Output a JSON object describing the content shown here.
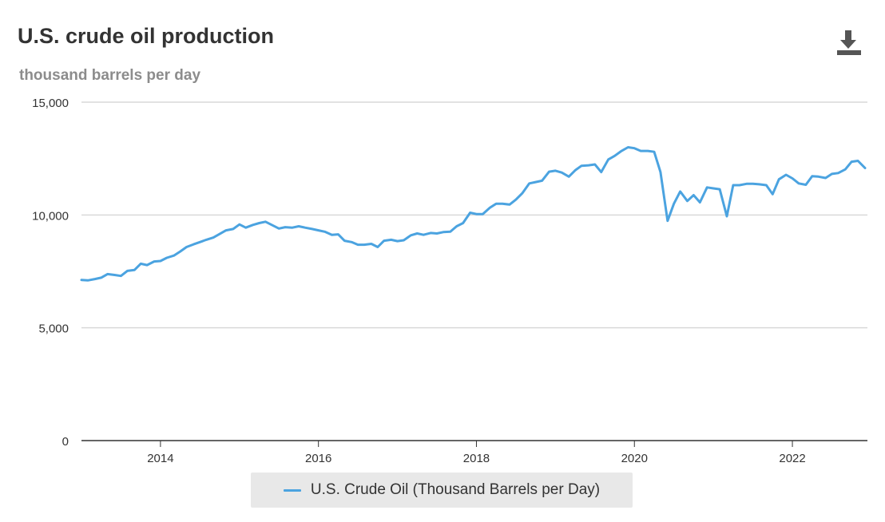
{
  "header": {
    "title": "U.S. crude oil production",
    "subtitle": "thousand barrels per day",
    "download_icon": "download-icon"
  },
  "legend": {
    "label": "U.S. Crude Oil (Thousand Barrels per Day)"
  },
  "colors": {
    "series": "#4ba3e0",
    "grid": "#d9d9d9",
    "axis": "#333333"
  },
  "chart_data": {
    "type": "line",
    "ylabel": "thousand barrels per day",
    "ylim": [
      0,
      15000
    ],
    "xlim": [
      2013.0,
      2022.95
    ],
    "yticks": [
      0,
      5000,
      10000,
      15000
    ],
    "ytick_labels": [
      "0",
      "5,000",
      "10,000",
      "15,000"
    ],
    "xticks": [
      2014,
      2016,
      2018,
      2020,
      2022
    ],
    "xtick_labels": [
      "2014",
      "2016",
      "2018",
      "2020",
      "2022"
    ],
    "grid": true,
    "legend_position": "bottom",
    "series": [
      {
        "name": "U.S. Crude Oil (Thousand Barrels per Day)",
        "x": [
          2013.0,
          2013.08,
          2013.17,
          2013.25,
          2013.33,
          2013.42,
          2013.5,
          2013.58,
          2013.67,
          2013.75,
          2013.83,
          2013.92,
          2014.0,
          2014.08,
          2014.17,
          2014.25,
          2014.33,
          2014.42,
          2014.5,
          2014.58,
          2014.67,
          2014.75,
          2014.83,
          2014.92,
          2015.0,
          2015.08,
          2015.17,
          2015.25,
          2015.33,
          2015.42,
          2015.5,
          2015.58,
          2015.67,
          2015.75,
          2015.83,
          2015.92,
          2016.0,
          2016.08,
          2016.17,
          2016.25,
          2016.33,
          2016.42,
          2016.5,
          2016.58,
          2016.67,
          2016.75,
          2016.83,
          2016.92,
          2017.0,
          2017.08,
          2017.17,
          2017.25,
          2017.33,
          2017.42,
          2017.5,
          2017.58,
          2017.67,
          2017.75,
          2017.83,
          2017.92,
          2018.0,
          2018.08,
          2018.17,
          2018.25,
          2018.33,
          2018.42,
          2018.5,
          2018.58,
          2018.67,
          2018.75,
          2018.83,
          2018.92,
          2019.0,
          2019.08,
          2019.17,
          2019.25,
          2019.33,
          2019.42,
          2019.5,
          2019.58,
          2019.67,
          2019.75,
          2019.83,
          2019.92,
          2020.0,
          2020.08,
          2020.17,
          2020.25,
          2020.33,
          2020.42,
          2020.5,
          2020.58,
          2020.67,
          2020.75,
          2020.83,
          2020.92,
          2021.0,
          2021.08,
          2021.17,
          2021.25,
          2021.33,
          2021.42,
          2021.5,
          2021.58,
          2021.67,
          2021.75,
          2021.83,
          2021.92,
          2022.0,
          2022.08,
          2022.17,
          2022.25,
          2022.33,
          2022.42,
          2022.5,
          2022.58,
          2022.67,
          2022.75,
          2022.83,
          2022.92
        ],
        "values": [
          7120,
          7100,
          7160,
          7220,
          7380,
          7340,
          7300,
          7520,
          7560,
          7840,
          7780,
          7940,
          7960,
          8100,
          8200,
          8380,
          8580,
          8700,
          8800,
          8900,
          9000,
          9160,
          9320,
          9380,
          9580,
          9440,
          9560,
          9640,
          9700,
          9540,
          9400,
          9460,
          9440,
          9500,
          9440,
          9380,
          9320,
          9260,
          9120,
          9140,
          8860,
          8800,
          8680,
          8680,
          8720,
          8580,
          8860,
          8900,
          8840,
          8880,
          9100,
          9180,
          9120,
          9200,
          9180,
          9240,
          9260,
          9500,
          9640,
          10100,
          10040,
          10040,
          10320,
          10500,
          10500,
          10460,
          10680,
          10960,
          11400,
          11460,
          11520,
          11920,
          11960,
          11880,
          11700,
          11980,
          12180,
          12200,
          12240,
          11900,
          12460,
          12620,
          12820,
          13000,
          12960,
          12840,
          12840,
          12800,
          11900,
          9740,
          10500,
          11040,
          10620,
          10880,
          10560,
          11220,
          11180,
          11140,
          9940,
          11320,
          11320,
          11380,
          11380,
          11360,
          11320,
          10920,
          11580,
          11780,
          11620,
          11400,
          11340,
          11720,
          11700,
          11640,
          11820,
          11860,
          12020,
          12360,
          12400,
          12080
        ]
      }
    ]
  }
}
